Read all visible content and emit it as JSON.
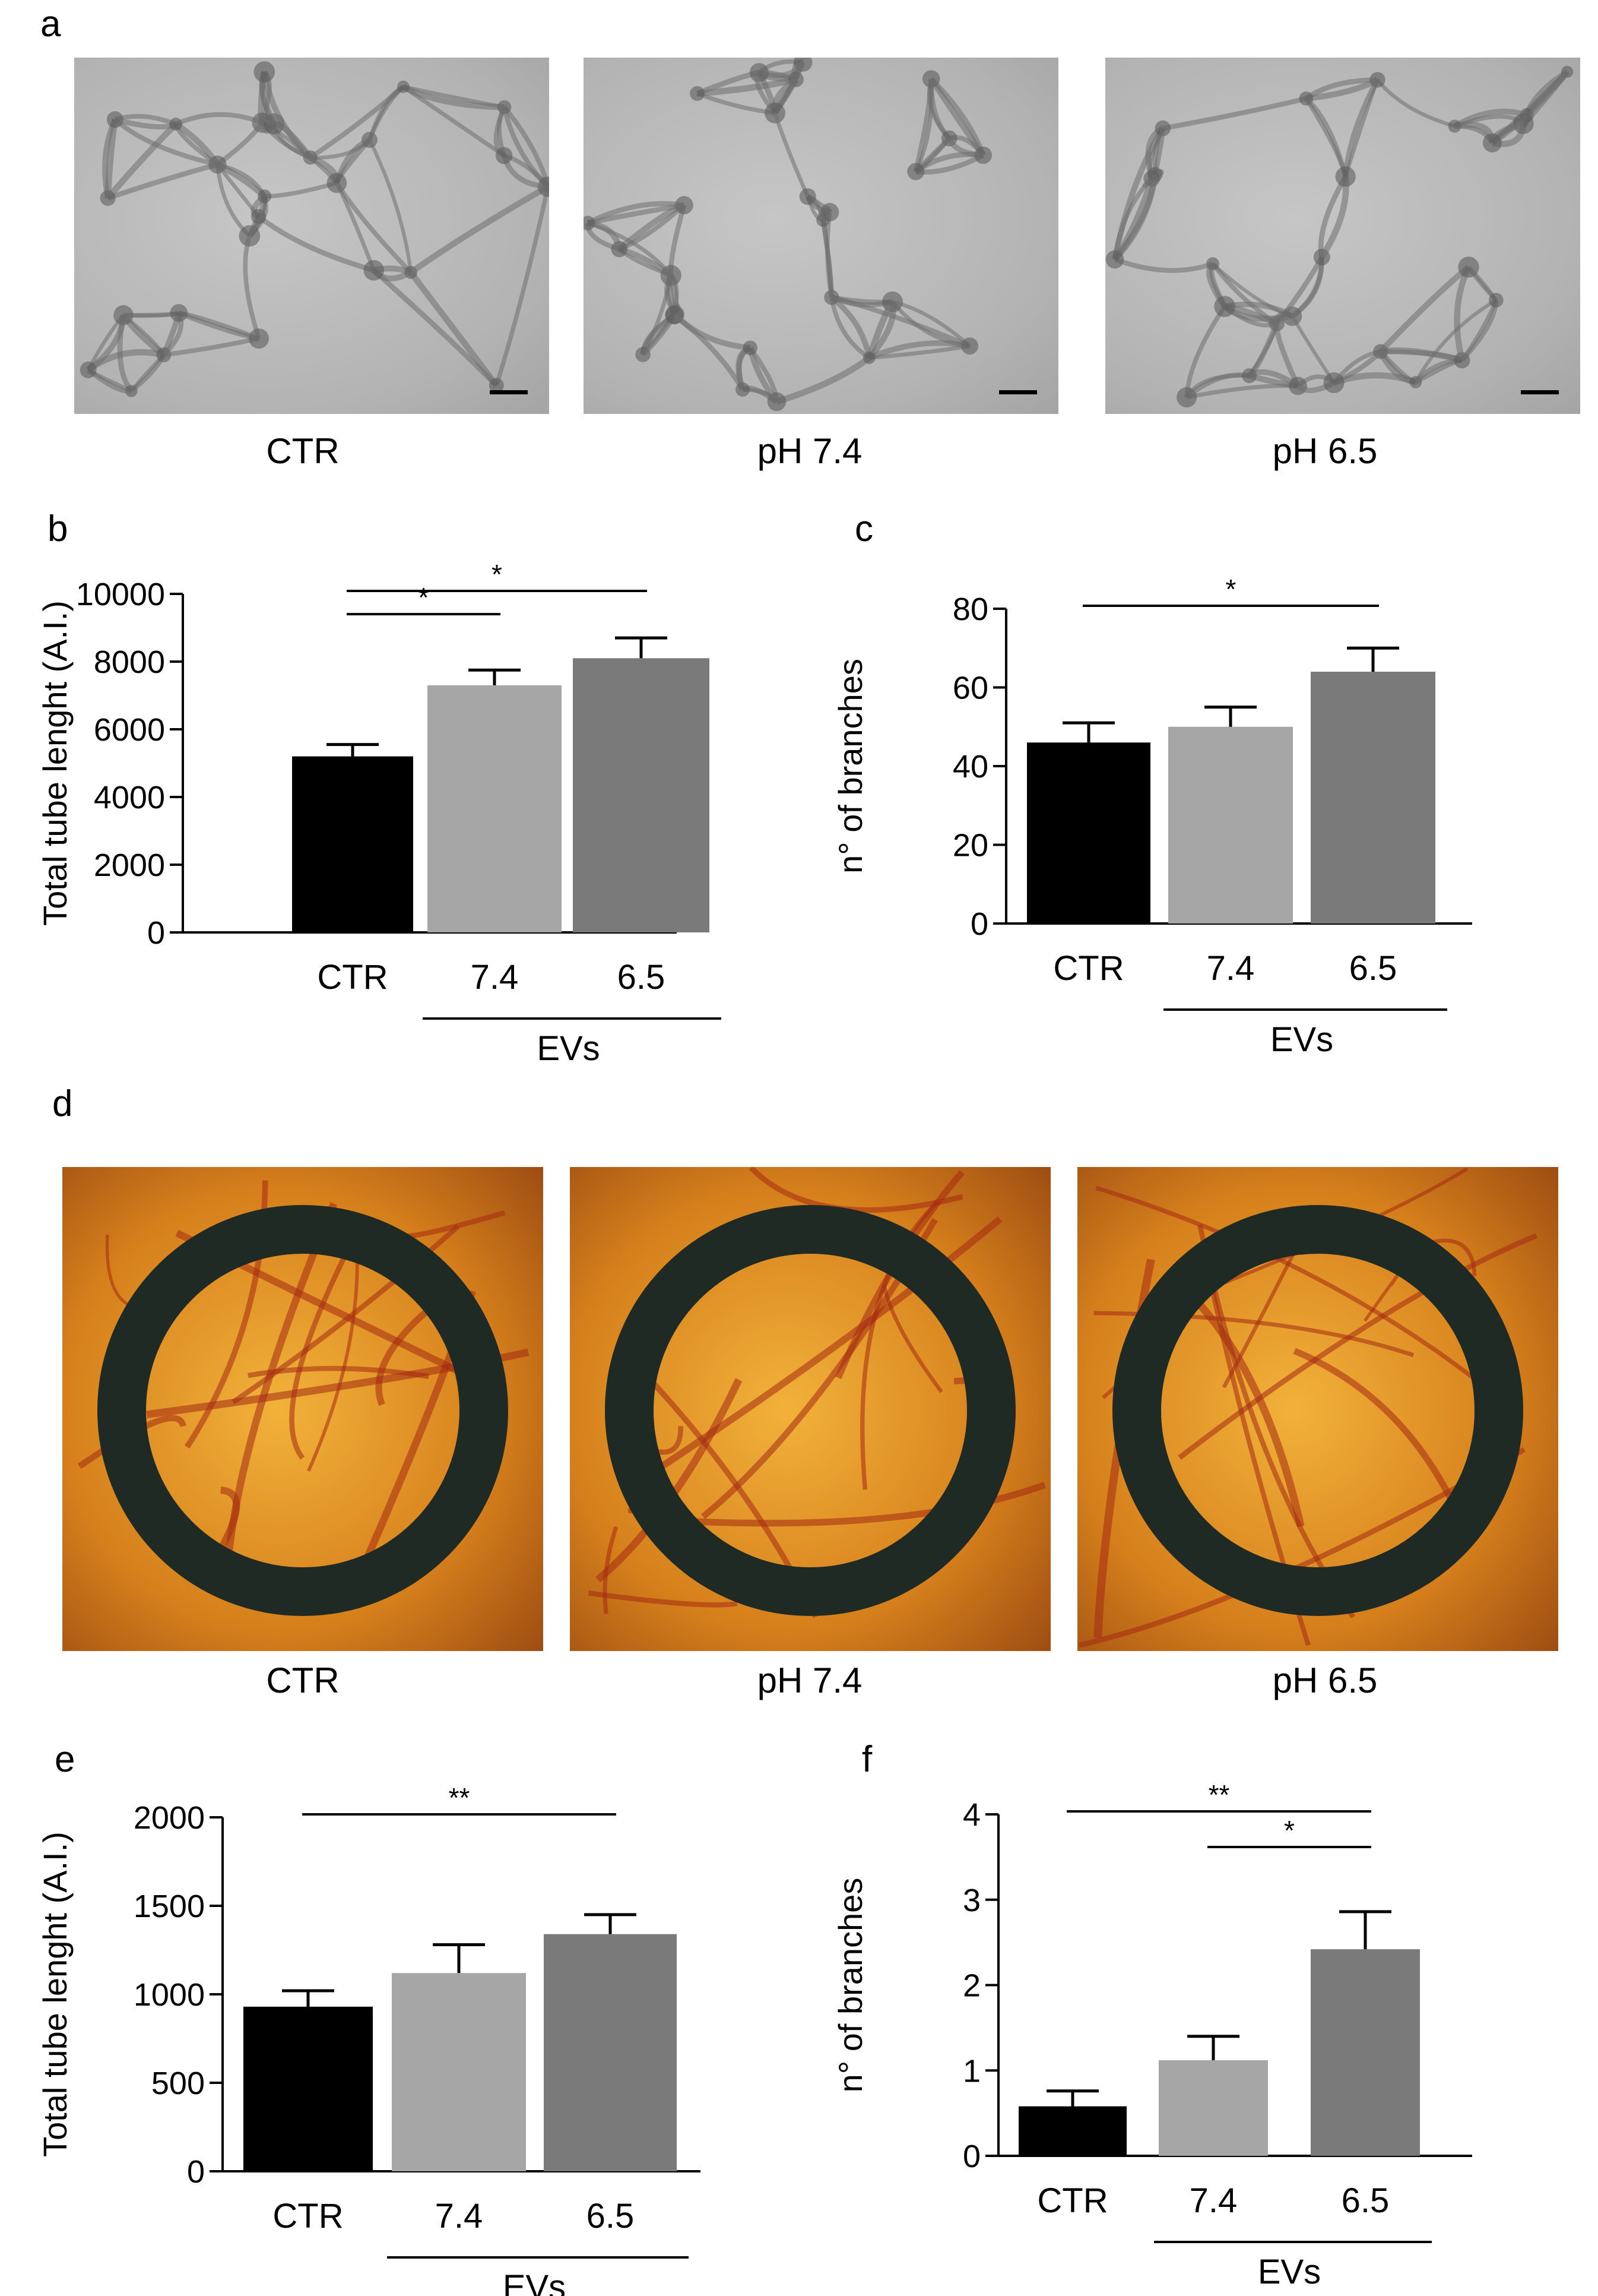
{
  "panel_labels": {
    "a": "a",
    "b": "b",
    "c": "c",
    "d": "d",
    "e": "e",
    "f": "f"
  },
  "micrograph_captions": [
    "CTR",
    "pH 7.4",
    "pH 6.5"
  ],
  "cam_captions": [
    "CTR",
    "pH 7.4",
    "pH 6.5"
  ],
  "colors": {
    "ctr": "#000000",
    "ph74": "#a6a6a6",
    "ph65": "#7a7a7a",
    "micrograph": "#b5b5b5",
    "cam": "#d98a1c",
    "ring": "#1f2a24"
  },
  "chart_data": [
    {
      "id": "b",
      "type": "bar",
      "categories": [
        "CTR",
        "7.4",
        "6.5"
      ],
      "group_label": "EVs",
      "ylabel": "Total tube lenght (A.I.)",
      "ylim": [
        0,
        10000
      ],
      "yticks": [
        0,
        2000,
        4000,
        6000,
        8000,
        10000
      ],
      "values": [
        5200,
        7300,
        8100
      ],
      "errors": [
        350,
        450,
        600
      ],
      "significance": [
        {
          "from": 0,
          "to": 1,
          "label": "*"
        },
        {
          "from": 0,
          "to": 2,
          "label": "*"
        }
      ]
    },
    {
      "id": "c",
      "type": "bar",
      "categories": [
        "CTR",
        "7.4",
        "6.5"
      ],
      "group_label": "EVs",
      "ylabel": "n° of branches",
      "ylim": [
        0,
        80
      ],
      "yticks": [
        0,
        20,
        40,
        60,
        80
      ],
      "values": [
        46,
        50,
        64
      ],
      "errors": [
        5,
        5,
        6
      ],
      "significance": [
        {
          "from": 0,
          "to": 2,
          "label": "*"
        }
      ]
    },
    {
      "id": "e",
      "type": "bar",
      "categories": [
        "CTR",
        "7.4",
        "6.5"
      ],
      "group_label": "EVs",
      "ylabel": "Total tube lenght (A.I.)",
      "ylim": [
        0,
        2000
      ],
      "yticks": [
        0,
        500,
        1000,
        1500,
        2000
      ],
      "values": [
        930,
        1120,
        1340
      ],
      "errors": [
        90,
        160,
        110
      ],
      "significance": [
        {
          "from": 0,
          "to": 2,
          "label": "**"
        }
      ]
    },
    {
      "id": "f",
      "type": "bar",
      "categories": [
        "CTR",
        "7.4",
        "6.5"
      ],
      "group_label": "EVs",
      "ylabel": "n° of branches",
      "ylim": [
        0,
        4
      ],
      "yticks": [
        0,
        1,
        2,
        3,
        4
      ],
      "values": [
        0.58,
        1.12,
        2.42
      ],
      "errors": [
        0.18,
        0.28,
        0.44
      ],
      "significance": [
        {
          "from": 0,
          "to": 2,
          "label": "**"
        },
        {
          "from": 1,
          "to": 2,
          "label": "*"
        }
      ]
    }
  ]
}
